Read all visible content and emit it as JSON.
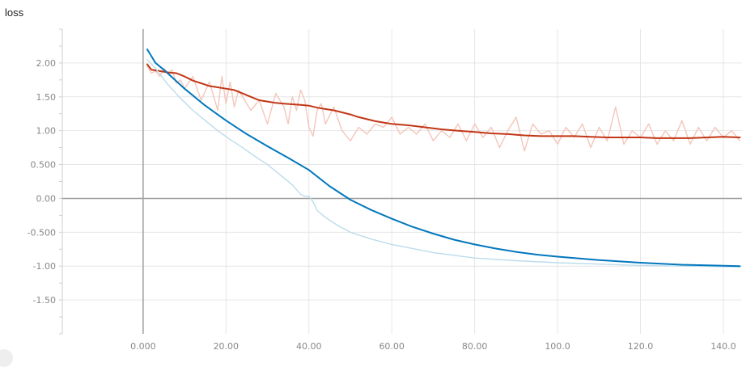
{
  "chart_data": {
    "type": "line",
    "title": "loss",
    "xlabel": "",
    "ylabel": "",
    "xlim": [
      -19.5,
      144.5
    ],
    "ylim": [
      -2.0,
      2.5
    ],
    "x_ticks": [
      "0.000",
      "20.00",
      "40.00",
      "60.00",
      "80.00",
      "100.0",
      "120.0",
      "140.0"
    ],
    "x_tick_values": [
      0,
      20,
      40,
      60,
      80,
      100,
      120,
      140
    ],
    "y_ticks": [
      "2.00",
      "1.50",
      "1.00",
      "0.500",
      "0.00",
      "-0.500",
      "-1.00",
      "-1.50"
    ],
    "y_tick_values": [
      2.0,
      1.5,
      1.0,
      0.5,
      0.0,
      -0.5,
      -1.0,
      -1.5
    ],
    "grid": true,
    "series": [
      {
        "role": "raw",
        "color": "#f4c6bb",
        "x": [
          1,
          2,
          3,
          4,
          5,
          6,
          7,
          8,
          9,
          10,
          12,
          14,
          16,
          18,
          19,
          20,
          21,
          22,
          23,
          24,
          26,
          28,
          30,
          32,
          34,
          35,
          36,
          37,
          38,
          39,
          40,
          41,
          42,
          43,
          44,
          46,
          48,
          50,
          52,
          54,
          56,
          58,
          60,
          62,
          64,
          66,
          68,
          70,
          72,
          74,
          76,
          78,
          80,
          82,
          84,
          86,
          88,
          90,
          92,
          94,
          96,
          98,
          100,
          102,
          104,
          106,
          108,
          110,
          112,
          114,
          116,
          118,
          120,
          122,
          124,
          126,
          128,
          130,
          132,
          134,
          136,
          138,
          140,
          142,
          144
        ],
        "y": [
          1.95,
          1.85,
          1.88,
          1.8,
          1.92,
          1.85,
          1.9,
          1.7,
          1.75,
          1.62,
          1.8,
          1.45,
          1.72,
          1.3,
          1.8,
          1.4,
          1.72,
          1.35,
          1.6,
          1.5,
          1.3,
          1.45,
          1.1,
          1.55,
          1.35,
          1.1,
          1.5,
          1.3,
          1.6,
          1.45,
          1.05,
          0.92,
          1.3,
          1.4,
          1.1,
          1.35,
          1.0,
          0.85,
          1.05,
          0.95,
          1.1,
          1.05,
          1.2,
          0.95,
          1.05,
          0.95,
          1.1,
          0.85,
          1.0,
          0.9,
          1.1,
          0.85,
          1.1,
          0.9,
          1.05,
          0.75,
          1.0,
          1.2,
          0.7,
          1.1,
          0.95,
          1.0,
          0.8,
          1.05,
          0.9,
          1.1,
          0.75,
          1.05,
          0.85,
          1.35,
          0.8,
          1.0,
          0.9,
          1.1,
          0.8,
          1.0,
          0.85,
          1.15,
          0.8,
          1.05,
          0.85,
          1.05,
          0.9,
          1.0,
          0.85
        ]
      },
      {
        "role": "smoothed",
        "color": "#c23616",
        "x": [
          1,
          2,
          4,
          6,
          8,
          10,
          12,
          14,
          16,
          18,
          20,
          22,
          24,
          26,
          28,
          30,
          32,
          34,
          36,
          38,
          40,
          42,
          44,
          46,
          48,
          50,
          52,
          54,
          56,
          58,
          60,
          64,
          68,
          72,
          76,
          80,
          84,
          88,
          92,
          96,
          100,
          104,
          108,
          112,
          116,
          120,
          124,
          128,
          132,
          136,
          140,
          144
        ],
        "y": [
          1.98,
          1.9,
          1.88,
          1.86,
          1.85,
          1.8,
          1.74,
          1.7,
          1.66,
          1.64,
          1.62,
          1.6,
          1.55,
          1.5,
          1.45,
          1.43,
          1.41,
          1.4,
          1.39,
          1.38,
          1.37,
          1.34,
          1.32,
          1.3,
          1.27,
          1.24,
          1.2,
          1.17,
          1.14,
          1.12,
          1.1,
          1.08,
          1.05,
          1.02,
          1.0,
          0.98,
          0.96,
          0.95,
          0.93,
          0.92,
          0.92,
          0.92,
          0.91,
          0.9,
          0.9,
          0.9,
          0.89,
          0.89,
          0.89,
          0.9,
          0.91,
          0.9
        ]
      },
      {
        "role": "raw",
        "color": "#bcdcec",
        "x": [
          1,
          3,
          6,
          9,
          12,
          15,
          18,
          21,
          24,
          27,
          30,
          33,
          36,
          38,
          39,
          40,
          41,
          42,
          44,
          47,
          50,
          55,
          60,
          65,
          70,
          75,
          80,
          90,
          100,
          110,
          120,
          130,
          144
        ],
        "y": [
          2.05,
          1.92,
          1.68,
          1.48,
          1.3,
          1.15,
          1.0,
          0.87,
          0.75,
          0.62,
          0.5,
          0.35,
          0.2,
          0.06,
          0.03,
          0.03,
          -0.05,
          -0.18,
          -0.28,
          -0.4,
          -0.5,
          -0.6,
          -0.68,
          -0.74,
          -0.8,
          -0.84,
          -0.88,
          -0.92,
          -0.95,
          -0.97,
          -0.99,
          -1.0,
          -1.01
        ]
      },
      {
        "role": "smoothed",
        "color": "#0277bd",
        "x": [
          1,
          3,
          5,
          10,
          15,
          20,
          25,
          30,
          35,
          40,
          45,
          50,
          55,
          60,
          65,
          70,
          75,
          80,
          85,
          90,
          95,
          100,
          110,
          120,
          130,
          144
        ],
        "y": [
          2.2,
          2.0,
          1.9,
          1.62,
          1.37,
          1.15,
          0.95,
          0.77,
          0.6,
          0.42,
          0.18,
          -0.02,
          -0.17,
          -0.3,
          -0.42,
          -0.52,
          -0.61,
          -0.68,
          -0.74,
          -0.79,
          -0.83,
          -0.86,
          -0.91,
          -0.95,
          -0.98,
          -1.0
        ]
      }
    ]
  }
}
